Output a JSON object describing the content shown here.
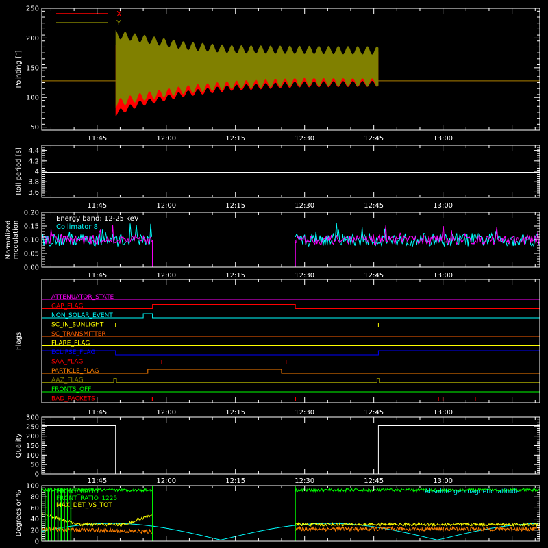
{
  "colors": {
    "background": "#000000",
    "axes": "#ffffff",
    "x_series": "#ff0000",
    "y_series": "#808000",
    "white": "#ffffff",
    "cyan": "#00ffff",
    "magenta": "#ff00ff",
    "red": "#ff0000",
    "orange": "#ff8000",
    "yellow": "#ffff00",
    "blue": "#0000ff",
    "green": "#00ff00",
    "olive": "#808000",
    "darkorange": "#ff6000"
  },
  "chart_data": [
    {
      "id": "pointing",
      "type": "area",
      "title": "",
      "xlabel": "",
      "ylabel": "Pointing [″]",
      "xlim": [
        "11:33",
        "13:21"
      ],
      "ylim": [
        45,
        250
      ],
      "yticks": [
        50,
        100,
        150,
        200,
        250
      ],
      "xticks": [
        "11:45",
        "12:00",
        "12:15",
        "12:30",
        "12:45",
        "13:00"
      ],
      "legend": "top-left",
      "series": [
        {
          "name": "X",
          "color": "#ff0000",
          "t_start": "11:49",
          "t_end": "12:46",
          "center": [
            [
              0,
              128
            ],
            [
              5,
              132
            ],
            [
              15,
              138
            ],
            [
              25,
              143
            ],
            [
              40,
              147
            ],
            [
              57,
              148
            ]
          ],
          "halfwidth": [
            [
              0,
              55
            ],
            [
              5,
              43
            ],
            [
              15,
              32
            ],
            [
              25,
              27
            ],
            [
              40,
              25
            ],
            [
              57,
              25
            ]
          ],
          "baseline": 128
        },
        {
          "name": "Y",
          "color": "#808000",
          "t_start": "11:49",
          "t_end": "12:46",
          "center": [
            [
              0,
              148
            ],
            [
              5,
              150
            ],
            [
              15,
              150
            ],
            [
              25,
              151
            ],
            [
              40,
              153
            ],
            [
              57,
              152
            ]
          ],
          "halfwidth": [
            [
              0,
              58
            ],
            [
              5,
              50
            ],
            [
              15,
              37
            ],
            [
              25,
              30
            ],
            [
              40,
              27
            ],
            [
              57,
              27
            ]
          ],
          "baseline": 128
        }
      ]
    },
    {
      "id": "roll_period",
      "type": "line",
      "title": "",
      "xlabel": "",
      "ylabel": "Roll period [s]",
      "xlim": [
        "11:33",
        "13:21"
      ],
      "ylim": [
        3.5,
        4.5
      ],
      "yticks": [
        3.6,
        3.8,
        4.0,
        4.2,
        4.4
      ],
      "xticks": [
        "11:45",
        "12:00",
        "12:15",
        "12:30",
        "12:45",
        "13:00"
      ],
      "series": [
        {
          "name": "",
          "color": "#ffffff",
          "x": [
            "11:33",
            "13:21"
          ],
          "y": [
            3.98,
            3.98
          ]
        }
      ]
    },
    {
      "id": "modulation",
      "type": "line",
      "title": "",
      "xlabel": "",
      "ylabel": "Normalized modulation",
      "ylabel_lines": [
        "Normalized",
        "modulation"
      ],
      "xlim": [
        "11:33",
        "13:21"
      ],
      "ylim": [
        0.0,
        0.2
      ],
      "yticks": [
        0.0,
        0.05,
        0.1,
        0.15,
        0.2
      ],
      "ytick_labels": [
        "0.00",
        "0.05",
        "0.10",
        "0.15",
        "0.20"
      ],
      "xticks": [
        "11:45",
        "12:00",
        "12:15",
        "12:30",
        "12:45",
        "13:00"
      ],
      "annotations": [
        "Energy band: 12-25 keV"
      ],
      "series": [
        {
          "name": "Collimator 8",
          "color": "#00ffff",
          "level": 0.1,
          "noise": 0.035,
          "segments": [
            [
              "11:33",
              "11:57"
            ],
            [
              "12:28",
              "13:21"
            ]
          ]
        },
        {
          "name": "",
          "color": "#ff00ff",
          "level": 0.1,
          "noise": 0.025,
          "segments": [
            [
              "11:33",
              "11:57"
            ],
            [
              "12:28",
              "13:21"
            ]
          ],
          "zero_between": [
            "11:57",
            "12:28"
          ]
        }
      ]
    },
    {
      "id": "flags",
      "type": "line",
      "title": "",
      "xlabel": "",
      "ylabel": "Flags",
      "xlim": [
        "11:33",
        "13:21"
      ],
      "xticks": [
        "11:45",
        "12:00",
        "12:15",
        "12:30",
        "12:45",
        "13:00"
      ],
      "flags": [
        {
          "name": "ATTENUATOR_STATE",
          "color": "#ff00ff",
          "high": []
        },
        {
          "name": "GAP_FLAG",
          "color": "#ff0000",
          "high": [
            [
              "11:57",
              "12:28"
            ]
          ]
        },
        {
          "name": "NON_SOLAR_EVENT",
          "color": "#00ffff",
          "high": [
            [
              "11:55",
              "11:57"
            ]
          ]
        },
        {
          "name": "SC_IN_SUNLIGHT",
          "color": "#ffff00",
          "high": [
            [
              "11:49",
              "12:46"
            ]
          ]
        },
        {
          "name": "SC_TRANSMITTER",
          "color": "#ff6000",
          "high": []
        },
        {
          "name": "FLARE_FLAG",
          "color": "#ffff00",
          "high": []
        },
        {
          "name": "ECLIPSE_FLAG",
          "color": "#0000ff",
          "high": [
            [
              "11:33",
              "11:49"
            ],
            [
              "12:46",
              "13:21"
            ]
          ]
        },
        {
          "name": "SAA_FLAG",
          "color": "#ff0000",
          "high": [
            [
              "11:59",
              "12:26"
            ]
          ]
        },
        {
          "name": "PARTICLE_FLAG",
          "color": "#ff8000",
          "high": [
            [
              "11:56",
              "12:25"
            ]
          ]
        },
        {
          "name": "AAZ_FLAG",
          "color": "#808000",
          "high": [
            [
              "11:48.6",
              "11:49.2"
            ],
            [
              "12:45.7",
              "12:46.3"
            ]
          ]
        },
        {
          "name": "FRONTS_OFF",
          "color": "#00ff00",
          "high": []
        },
        {
          "name": "BAD_PACKETS",
          "color": "#ff0000",
          "spikes": [
            "11:57",
            "12:28",
            "12:59",
            "13:00",
            "13:07"
          ]
        }
      ]
    },
    {
      "id": "quality",
      "type": "line",
      "title": "",
      "xlabel": "",
      "ylabel": "Quality",
      "xlim": [
        "11:33",
        "13:21"
      ],
      "ylim": [
        0,
        300
      ],
      "yticks": [
        0,
        50,
        100,
        150,
        200,
        250,
        300
      ],
      "xticks": [
        "11:45",
        "12:00",
        "12:15",
        "12:30",
        "12:45",
        "13:00"
      ],
      "series": [
        {
          "name": "",
          "color": "#ffffff",
          "x": [
            "11:33",
            "11:49",
            "11:49",
            "12:46",
            "12:46",
            "13:21"
          ],
          "y": [
            255,
            255,
            0,
            0,
            255,
            255
          ]
        }
      ]
    },
    {
      "id": "degrees",
      "type": "line",
      "title": "",
      "xlabel": "",
      "ylabel": "Degrees or %",
      "xlim": [
        "11:33",
        "13:21"
      ],
      "ylim": [
        0,
        100
      ],
      "yticks": [
        0,
        20,
        40,
        60,
        80,
        100
      ],
      "xticks": [
        "11:45",
        "12:00",
        "12:15",
        "12:30",
        "12:45",
        "13:00"
      ],
      "legend": "top-left",
      "right_legend": "Absolute geomagnetic latitude",
      "series": [
        {
          "name": "FRONT_RATIO",
          "color": "#00ff00",
          "level": 92
        },
        {
          "name": "FRONT_RATIO_1225",
          "color": "#00ff00",
          "level": 92
        },
        {
          "name": "MAX_DET_VS_TOT",
          "color": "#ffff00",
          "level": 30
        },
        {
          "name": "",
          "color": "#ff8000",
          "level": 22
        },
        {
          "name": "Absolute geomagnetic latitude",
          "color": "#00ffff"
        }
      ]
    }
  ]
}
